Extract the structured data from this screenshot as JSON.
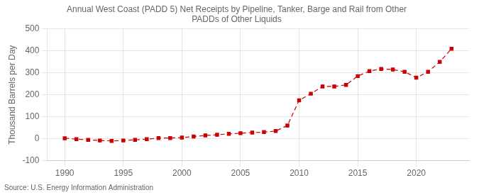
{
  "chart_data": {
    "type": "line",
    "title": "Annual West Coast (PADD 5) Net Receipts by Pipeline, Tanker, Barge and Rail from Other\nPADDs of Other Liquids",
    "ylabel": "Thousand Barrels per Day",
    "source": "Source: U.S. Energy Information Administration",
    "x": [
      1990,
      1991,
      1992,
      1993,
      1994,
      1995,
      1996,
      1997,
      1998,
      1999,
      2000,
      2001,
      2002,
      2003,
      2004,
      2005,
      2006,
      2007,
      2008,
      2009,
      2010,
      2011,
      2012,
      2013,
      2014,
      2015,
      2016,
      2017,
      2018,
      2019,
      2020,
      2021,
      2022,
      2023
    ],
    "values": [
      2,
      -2,
      -5,
      -8,
      -10,
      -8,
      -5,
      -2,
      3,
      3,
      5,
      10,
      15,
      18,
      22,
      25,
      28,
      30,
      35,
      60,
      175,
      205,
      238,
      238,
      245,
      285,
      308,
      318,
      315,
      305,
      278,
      305,
      350,
      410
    ],
    "color": "#cc0000",
    "marker": "square",
    "line_style": "dashed",
    "grid": true,
    "xlim": [
      1988.5,
      2024.5
    ],
    "xticks": [
      1990,
      1995,
      2000,
      2005,
      2010,
      2015,
      2020
    ],
    "ylim": [
      -100,
      500
    ],
    "yticks": [
      -100,
      0,
      100,
      200,
      300,
      400,
      500
    ]
  }
}
